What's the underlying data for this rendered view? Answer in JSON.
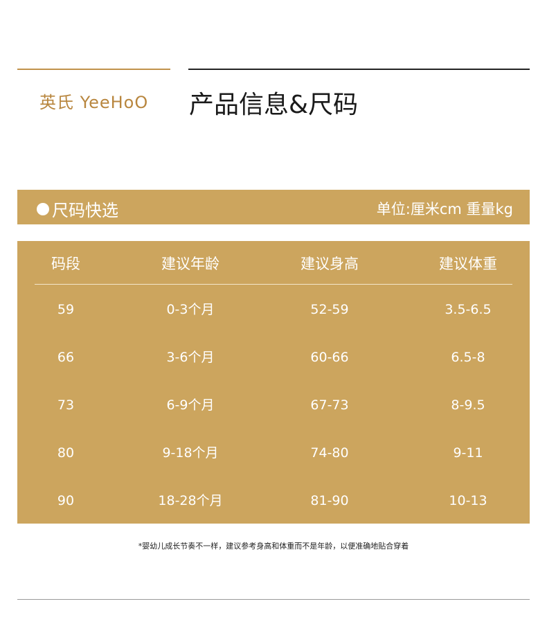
{
  "brand": {
    "logo_text": "英氏 YeeHoO",
    "gold": "#cca55e"
  },
  "header": {
    "title": "产品信息&尺码"
  },
  "size_bar": {
    "label": "尺码快选",
    "unit": "单位:厘米cm 重量kg"
  },
  "table": {
    "headers": [
      "码段",
      "建议年龄",
      "建议身高",
      "建议体重"
    ],
    "rows": [
      [
        "59",
        "0-3个月",
        "52-59",
        "3.5-6.5"
      ],
      [
        "66",
        "3-6个月",
        "60-66",
        "6.5-8"
      ],
      [
        "73",
        "6-9个月",
        "67-73",
        "8-9.5"
      ],
      [
        "80",
        "9-18个月",
        "74-80",
        "9-11"
      ],
      [
        "90",
        "18-28个月",
        "81-90",
        "10-13"
      ]
    ]
  },
  "note": "*婴幼儿成长节奏不一样，建议参考身高和体重而不是年龄，以便准确地贴合穿着"
}
